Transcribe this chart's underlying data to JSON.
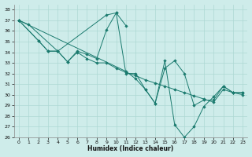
{
  "bg_color": "#ceecea",
  "grid_color": "#aed8d4",
  "line_color": "#1a7a6e",
  "xlabel": "Humidex (Indice chaleur)",
  "xlim": [
    -0.5,
    23.5
  ],
  "ylim": [
    26,
    38.5
  ],
  "yticks": [
    26,
    27,
    28,
    29,
    30,
    31,
    32,
    33,
    34,
    35,
    36,
    37,
    38
  ],
  "xticks": [
    0,
    1,
    2,
    3,
    4,
    5,
    6,
    7,
    8,
    9,
    10,
    11,
    12,
    13,
    14,
    15,
    16,
    17,
    18,
    19,
    20,
    21,
    22,
    23
  ],
  "series": [
    {
      "x": [
        0,
        1,
        4,
        9,
        10,
        11
      ],
      "y": [
        37.0,
        36.6,
        34.1,
        37.5,
        37.7,
        36.5
      ]
    },
    {
      "x": [
        0,
        2,
        3,
        4,
        5,
        6,
        7,
        8,
        9,
        10,
        11,
        12,
        13,
        14,
        15,
        16,
        17,
        18,
        19,
        20,
        21,
        22,
        23
      ],
      "y": [
        37.0,
        35.1,
        34.1,
        34.1,
        33.1,
        34.1,
        33.8,
        33.4,
        36.1,
        37.7,
        32.0,
        32.0,
        30.5,
        29.2,
        32.5,
        33.2,
        32.0,
        29.0,
        29.5,
        29.5,
        30.8,
        30.2,
        30.2
      ]
    },
    {
      "x": [
        0,
        2,
        3,
        4,
        5,
        6,
        7,
        8,
        9,
        10,
        11,
        12,
        13,
        14,
        15,
        16,
        17,
        18,
        19,
        20,
        21,
        22,
        23
      ],
      "y": [
        37.0,
        35.1,
        34.1,
        34.1,
        33.1,
        34.0,
        33.4,
        33.0,
        33.0,
        32.5,
        32.1,
        31.8,
        31.4,
        31.1,
        30.8,
        30.5,
        30.2,
        29.9,
        29.6,
        29.3,
        30.5,
        30.2,
        30.0
      ]
    },
    {
      "x": [
        0,
        11,
        12,
        13,
        14,
        15,
        16,
        17,
        18,
        19,
        20,
        21,
        22,
        23
      ],
      "y": [
        37.0,
        32.2,
        31.5,
        30.5,
        29.2,
        33.2,
        27.2,
        26.0,
        27.0,
        28.9,
        29.8,
        30.8,
        30.2,
        30.2
      ]
    }
  ]
}
